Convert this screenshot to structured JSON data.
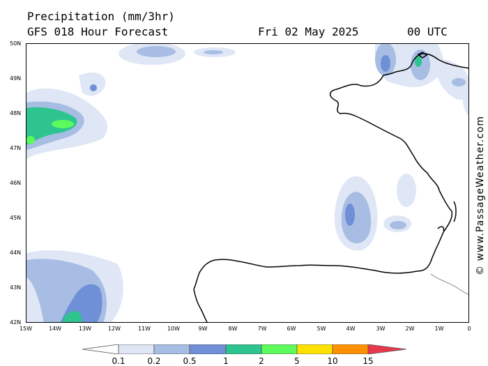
{
  "header": {
    "title": "Precipitation (mm/3hr)",
    "subtitle": "GFS 018 Hour Forecast",
    "valid_date": "Fri 02 May 2025",
    "valid_time": "00 UTC"
  },
  "credit": "© www.PassageWeather.com",
  "axes": {
    "lat_labels": [
      "50N",
      "49N",
      "48N",
      "47N",
      "46N",
      "45N",
      "44N",
      "43N",
      "42N"
    ],
    "lon_labels": [
      "15W",
      "14W",
      "13W",
      "12W",
      "11W",
      "10W",
      "9W",
      "8W",
      "7W",
      "6W",
      "5W",
      "4W",
      "3W",
      "2W",
      "1W",
      "0"
    ],
    "lat_range": [
      42,
      50
    ],
    "lon_range": [
      -15,
      0
    ]
  },
  "legend": {
    "levels": [
      "0.1",
      "0.2",
      "0.5",
      "1",
      "2",
      "5",
      "10",
      "15"
    ],
    "colors": [
      "#ffffff",
      "#dfe6f5",
      "#a8bde3",
      "#6f8fd6",
      "#2ec48f",
      "#5dfa5d",
      "#ffe100",
      "#ff9100",
      "#e8384f"
    ]
  }
}
